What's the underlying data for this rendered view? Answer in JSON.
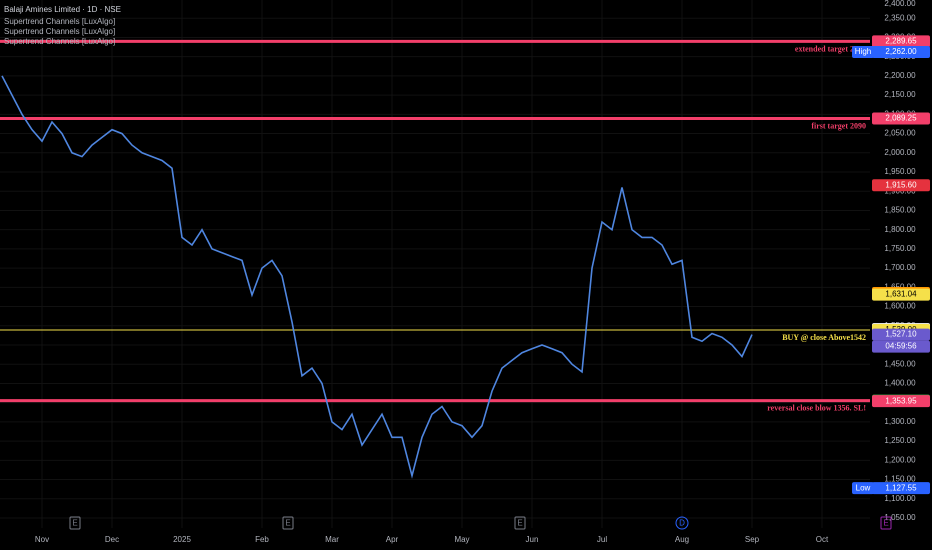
{
  "chart_data": {
    "type": "line",
    "title": "Balaji Amines Limited · 1D · NSE",
    "indicators": [
      "Supertrend Channels [LuxAlgo]",
      "Supertrend Channels [LuxAlgo]",
      "Supertrend Channels [LuxAlgo]"
    ],
    "series": [
      {
        "color": "#4f86e0",
        "values": [
          2200,
          2150,
          2100,
          2060,
          2030,
          2080,
          2050,
          2000,
          1990,
          2020,
          2040,
          2060,
          2050,
          2020,
          2000,
          1990,
          1980,
          1960,
          1780,
          1760,
          1800,
          1750,
          1740,
          1730,
          1720,
          1630,
          1700,
          1720,
          1680,
          1560,
          1420,
          1440,
          1400,
          1300,
          1280,
          1320,
          1240,
          1280,
          1320,
          1260,
          1260,
          1160,
          1260,
          1320,
          1340,
          1300,
          1290,
          1260,
          1290,
          1380,
          1440,
          1460,
          1480,
          1490,
          1500,
          1490,
          1480,
          1450,
          1430,
          1700,
          1820,
          1800,
          1910,
          1800,
          1780,
          1780,
          1760,
          1710,
          1720,
          1520,
          1510,
          1530,
          1520,
          1500,
          1470,
          1527
        ]
      }
    ],
    "xlim": [
      0,
      87
    ],
    "xticks": [
      {
        "value": 4,
        "label": "Nov"
      },
      {
        "value": 11,
        "label": "Dec"
      },
      {
        "value": 18,
        "label": "2025"
      },
      {
        "value": 26,
        "label": "Feb"
      },
      {
        "value": 33,
        "label": "Mar"
      },
      {
        "value": 39,
        "label": "Apr"
      },
      {
        "value": 46,
        "label": "May"
      },
      {
        "value": 53,
        "label": "Jun"
      },
      {
        "value": 60,
        "label": "Jul"
      },
      {
        "value": 68,
        "label": "Aug"
      },
      {
        "value": 75,
        "label": "Sep"
      },
      {
        "value": 82,
        "label": "Oct"
      }
    ],
    "ylim": [
      1050,
      2400
    ],
    "yticks": [
      {
        "value": 1050,
        "label": "1,050.00"
      },
      {
        "value": 1100,
        "label": "1,100.00"
      },
      {
        "value": 1150,
        "label": "1,150.00"
      },
      {
        "value": 1200,
        "label": "1,200.00"
      },
      {
        "value": 1250,
        "label": "1,250.00"
      },
      {
        "value": 1300,
        "label": "1,300.00"
      },
      {
        "value": 1350,
        "label": "1,350.00"
      },
      {
        "value": 1400,
        "label": "1,400.00"
      },
      {
        "value": 1450,
        "label": "1,450.00"
      },
      {
        "value": 1500,
        "label": "1,500.00"
      },
      {
        "value": 1550,
        "label": "1,550.00"
      },
      {
        "value": 1600,
        "label": "1,600.00"
      },
      {
        "value": 1650,
        "label": "1,650.00"
      },
      {
        "value": 1700,
        "label": "1,700.00"
      },
      {
        "value": 1750,
        "label": "1,750.00"
      },
      {
        "value": 1800,
        "label": "1,800.00"
      },
      {
        "value": 1850,
        "label": "1,850.00"
      },
      {
        "value": 1900,
        "label": "1,900.00"
      },
      {
        "value": 1950,
        "label": "1,950.00"
      },
      {
        "value": 2000,
        "label": "2,000.00"
      },
      {
        "value": 2050,
        "label": "2,050.00"
      },
      {
        "value": 2100,
        "label": "2,100.00"
      },
      {
        "value": 2150,
        "label": "2,150.00"
      },
      {
        "value": 2200,
        "label": "2,200.00"
      },
      {
        "value": 2250,
        "label": "2,250.00"
      },
      {
        "value": 2300,
        "label": "2,300.00"
      },
      {
        "value": 2350,
        "label": "2,350.00"
      },
      {
        "value": 2400,
        "label": "2,400.00"
      }
    ],
    "grid": true,
    "levels": [
      {
        "value": 2289.65,
        "text": "extended target 2300",
        "color": "#f23f6a"
      },
      {
        "value": 2089.25,
        "text": "first target 2090",
        "color": "#f23f6a"
      },
      {
        "value": 1539,
        "text": "BUY @ close Above1542",
        "color": "#f5e04a"
      },
      {
        "value": 1355.18,
        "text": "reversal close blow 1356. SL!",
        "color": "#f23f6a"
      }
    ],
    "price_labels": [
      {
        "value": 2289.65,
        "label": "2,289.65",
        "color": "#f23f6a"
      },
      {
        "value": 2262,
        "label": "2,262.00",
        "tag": "High",
        "color": "#2962ff"
      },
      {
        "value": 2089.25,
        "label": "2,089.25",
        "color": "#f23f6a"
      },
      {
        "value": 1915.6,
        "label": "1,915.60",
        "color": "#e5323e"
      },
      {
        "value": 1635.39,
        "label": "1,635.39",
        "color": "#ff9800"
      },
      {
        "value": 1631.04,
        "label": "1,631.04",
        "color": "#f5e04a"
      },
      {
        "value": 1541.19,
        "label": "1,541.19",
        "color": "#ffffff"
      },
      {
        "value": 1539,
        "label": "1,539.00",
        "color": "#f5e04a"
      },
      {
        "value": 1527.1,
        "label": "1,527.10",
        "sub": "04:59:56",
        "color": "#6a5acd"
      },
      {
        "value": 1355.18,
        "label": "1,355.18",
        "color": "#4caf50"
      },
      {
        "value": 1353.95,
        "label": "1,353.95",
        "color": "#f23f6a"
      },
      {
        "value": 1127.55,
        "label": "1,127.55",
        "tag": "Low",
        "color": "#2962ff"
      }
    ],
    "events": [
      "E",
      "E",
      "E",
      "D",
      "E"
    ]
  }
}
